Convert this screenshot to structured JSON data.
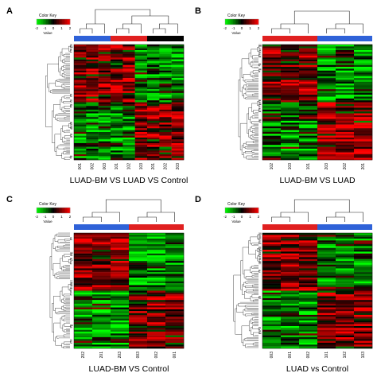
{
  "chart_data": [
    {
      "type": "heatmap",
      "panel_label": "A",
      "title": "LUAD-BM VS LUAD VS Control",
      "color_key": {
        "title": "Color Key",
        "axis_label": "Value",
        "ticks": [
          "-2",
          "-1",
          "0",
          "1",
          "2"
        ]
      },
      "color_scale": {
        "low": "#00ff00",
        "mid": "#000000",
        "high": "#ff0000",
        "range": [
          -2,
          2
        ]
      },
      "groups": [
        {
          "color": "#2f62d8",
          "count": 3
        },
        {
          "color": "#e02020",
          "count": 3
        },
        {
          "color": "#000000",
          "count": 3
        }
      ],
      "samples": [
        "001",
        "002",
        "003",
        "101",
        "102",
        "103",
        "201",
        "202",
        "203"
      ]
    },
    {
      "type": "heatmap",
      "panel_label": "B",
      "title": "LUAD-BM VS LUAD",
      "color_key": {
        "title": "Color Key",
        "axis_label": "Value",
        "ticks": [
          "-2",
          "-1",
          "0",
          "1",
          "2"
        ]
      },
      "color_scale": {
        "low": "#00ff00",
        "mid": "#000000",
        "high": "#ff0000",
        "range": [
          -2,
          2
        ]
      },
      "groups": [
        {
          "color": "#e02020",
          "count": 3
        },
        {
          "color": "#2f62d8",
          "count": 3
        }
      ],
      "samples": [
        "102",
        "103",
        "101",
        "203",
        "202",
        "201"
      ]
    },
    {
      "type": "heatmap",
      "panel_label": "C",
      "title": "LUAD-BM VS Control",
      "color_key": {
        "title": "Color Key",
        "axis_label": "Value",
        "ticks": [
          "-2",
          "-1",
          "0",
          "1",
          "2"
        ]
      },
      "color_scale": {
        "low": "#00ff00",
        "mid": "#000000",
        "high": "#ff0000",
        "range": [
          -2,
          2
        ]
      },
      "groups": [
        {
          "color": "#2f62d8",
          "count": 3
        },
        {
          "color": "#e02020",
          "count": 3
        }
      ],
      "samples": [
        "202",
        "201",
        "203",
        "003",
        "002",
        "001"
      ]
    },
    {
      "type": "heatmap",
      "panel_label": "D",
      "title": "LUAD vs Control",
      "color_key": {
        "title": "Color Key",
        "axis_label": "Value",
        "ticks": [
          "-2",
          "-1",
          "0",
          "1",
          "2"
        ]
      },
      "color_scale": {
        "low": "#00ff00",
        "mid": "#000000",
        "high": "#ff0000",
        "range": [
          -2,
          2
        ]
      },
      "groups": [
        {
          "color": "#e02020",
          "count": 3
        },
        {
          "color": "#2f62d8",
          "count": 3
        }
      ],
      "samples": [
        "003",
        "001",
        "002",
        "101",
        "102",
        "103"
      ]
    }
  ]
}
